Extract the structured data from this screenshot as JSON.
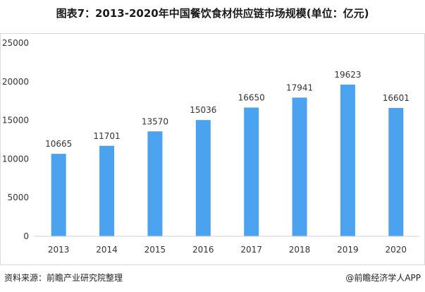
{
  "title": "图表7：2013-2020年中国餐饮食材供应链市场规模(单位：亿元)",
  "chart_data": {
    "type": "bar",
    "categories": [
      "2013",
      "2014",
      "2015",
      "2016",
      "2017",
      "2018",
      "2019",
      "2020"
    ],
    "values": [
      10665,
      11701,
      13570,
      15036,
      16650,
      17941,
      19623,
      16601
    ],
    "data_labels": [
      "10665",
      "11701",
      "13570",
      "15036",
      "16650",
      "17941",
      "19623",
      "16601"
    ],
    "ylim": [
      0,
      25000
    ],
    "yticks": [
      "0",
      "5000",
      "10000",
      "15000",
      "20000",
      "25000"
    ],
    "grid": false,
    "bar_color": "#4ba3ef"
  },
  "footer": {
    "source": "资料来源：前瞻产业研究院整理",
    "credit": "@前瞻经济学人APP"
  }
}
